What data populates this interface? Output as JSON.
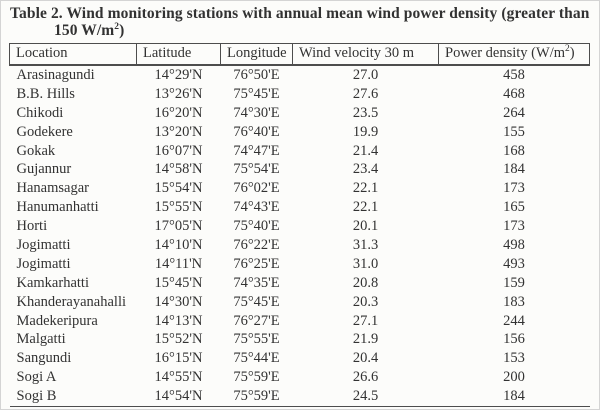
{
  "caption": {
    "line1": "Table 2. Wind monitoring stations with annual mean wind power density (greater than",
    "line2_base": "150 W/m",
    "line2_sup": "2",
    "line2_tail": ")"
  },
  "table": {
    "columns": {
      "location": "Location",
      "latitude": "Latitude",
      "longitude": "Longitude",
      "velocity": "Wind velocity 30 m",
      "power_base": "Power density (W/m",
      "power_sup": "2",
      "power_tail": ")"
    },
    "rows": [
      [
        "Arasinagundi",
        "14°29'N",
        "76°50'E",
        "27.0",
        "458"
      ],
      [
        "B.B. Hills",
        "13°26'N",
        "75°45'E",
        "27.6",
        "468"
      ],
      [
        "Chikodi",
        "16°20'N",
        "74°30'E",
        "23.5",
        "264"
      ],
      [
        "Godekere",
        "13°20'N",
        "76°40'E",
        "19.9",
        "155"
      ],
      [
        "Gokak",
        "16°07'N",
        "74°47'E",
        "21.4",
        "168"
      ],
      [
        "Gujannur",
        "14°58'N",
        "75°54'E",
        "23.4",
        "184"
      ],
      [
        "Hanamsagar",
        "15°54'N",
        "76°02'E",
        "22.1",
        "173"
      ],
      [
        "Hanumanhatti",
        "15°55'N",
        "74°43'E",
        "22.1",
        "165"
      ],
      [
        "Horti",
        "17°05'N",
        "75°40'E",
        "20.1",
        "173"
      ],
      [
        "Jogimatti",
        "14°10'N",
        "76°22'E",
        "31.3",
        "498"
      ],
      [
        "Jogimatti",
        "14°11'N",
        "76°25'E",
        "31.0",
        "493"
      ],
      [
        "Kamkarhatti",
        "15°45'N",
        "74°35'E",
        "20.8",
        "159"
      ],
      [
        "Khanderayanahalli",
        "14°30'N",
        "75°45'E",
        "20.3",
        "183"
      ],
      [
        "Madekeripura",
        "14°13'N",
        "76°27'E",
        "27.1",
        "244"
      ],
      [
        "Malgatti",
        "15°52'N",
        "75°55'E",
        "21.9",
        "156"
      ],
      [
        "Sangundi",
        "16°15'N",
        "75°44'E",
        "20.4",
        "153"
      ],
      [
        "Sogi A",
        "14°55'N",
        "75°59'E",
        "26.6",
        "200"
      ],
      [
        "Sogi B",
        "14°54'N",
        "75°59'E",
        "24.5",
        "184"
      ]
    ]
  },
  "colors": {
    "text": "#323232",
    "rule": "#4d4d4d",
    "page_background": "#fcfcfa",
    "page_border": "#d4d4d4"
  }
}
